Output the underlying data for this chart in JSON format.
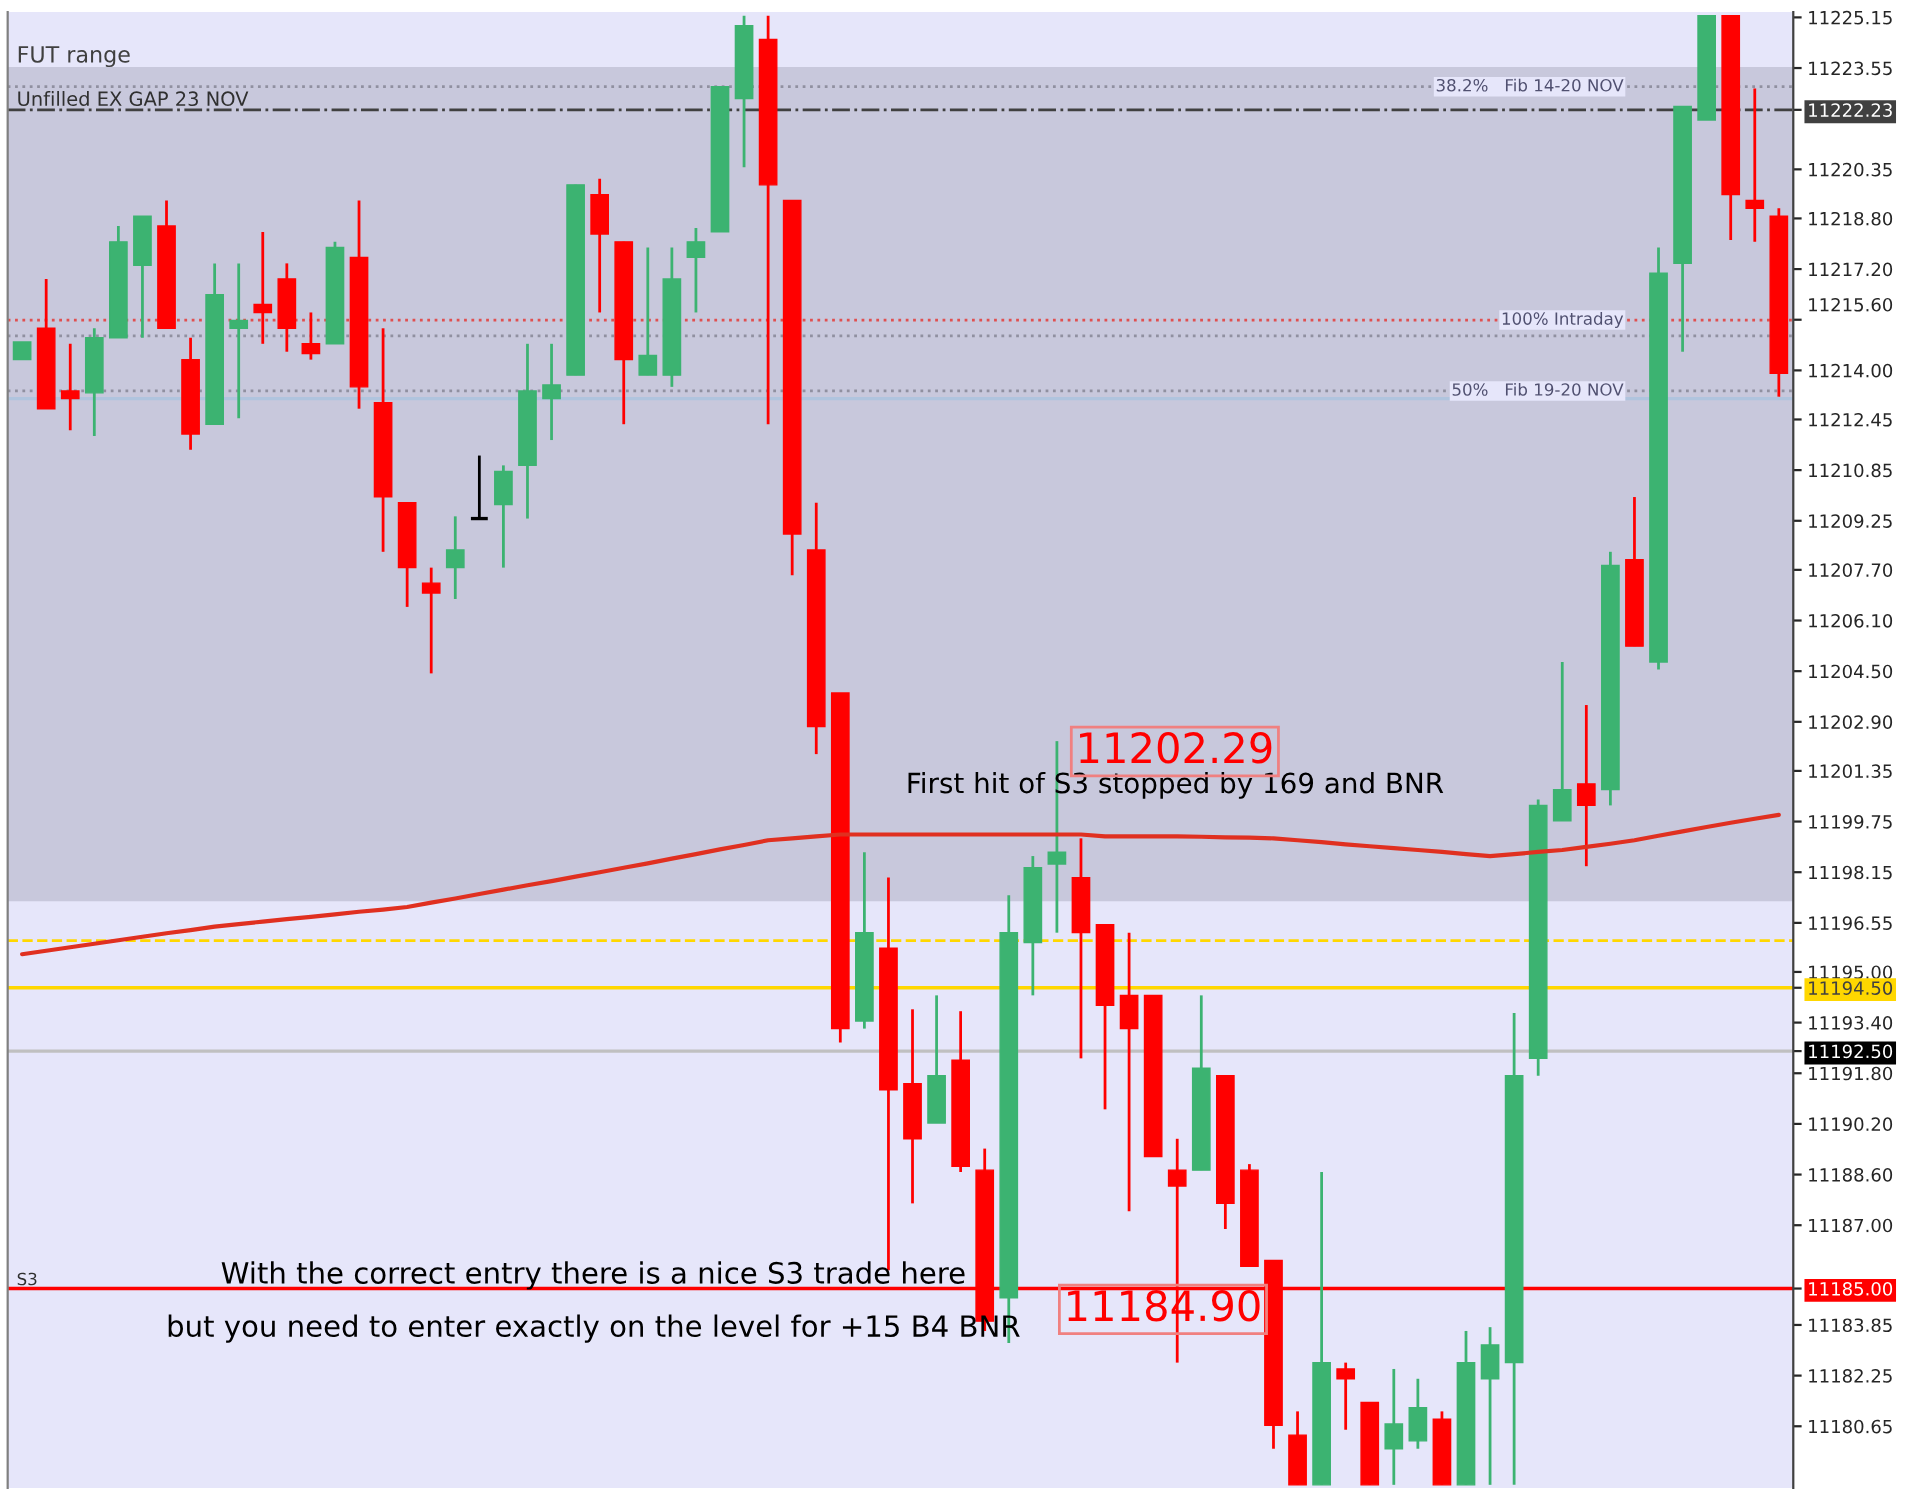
{
  "chart_data": {
    "type": "candlestick",
    "categories": [
      null,
      null,
      null,
      null,
      null,
      null,
      null,
      null,
      null,
      null,
      null,
      null,
      null,
      null,
      null,
      null,
      null,
      null,
      null,
      null,
      null,
      null,
      null,
      null,
      null,
      null,
      null,
      null,
      null,
      null,
      null,
      null,
      null,
      null,
      null,
      null,
      null,
      null,
      null,
      null,
      null,
      null,
      null,
      null,
      null,
      null,
      null,
      null,
      null,
      null,
      null,
      null,
      null,
      null,
      null,
      null,
      null,
      null,
      null,
      null,
      null,
      null,
      null,
      null,
      null,
      null,
      null,
      null,
      null,
      null,
      null,
      null,
      null,
      null
    ],
    "ohlc": [
      [
        11214.34,
        11214.9,
        11214.34,
        11214.9
      ],
      [
        11215.33,
        11216.89,
        11212.79,
        11212.79
      ],
      [
        11213.35,
        11214.84,
        11212.11,
        11213.11
      ],
      [
        11213.29,
        11215.33,
        11211.93,
        11215.03
      ],
      [
        11215.03,
        11218.56,
        11215.03,
        11218.06
      ],
      [
        11217.32,
        11218.87,
        11215.03,
        11218.87
      ],
      [
        11218.56,
        11219.37,
        11215.33,
        11215.33
      ],
      [
        11214.34,
        11215.03,
        11211.49,
        11211.99
      ],
      [
        11212.3,
        11217.38,
        11212.3,
        11216.39
      ],
      [
        11215.33,
        11217.38,
        11212.49,
        11215.58
      ],
      [
        11216.08,
        11218.37,
        11214.84,
        11215.83
      ],
      [
        11216.89,
        11217.38,
        11214.59,
        11215.33
      ],
      [
        11214.84,
        11215.83,
        11214.34,
        11214.53
      ],
      [
        11214.84,
        11218.06,
        11214.84,
        11217.88
      ],
      [
        11217.57,
        11219.37,
        11212.79,
        11213.48
      ],
      [
        11212.98,
        11215.33,
        11208.27,
        11210.01
      ],
      [
        11209.82,
        11209.82,
        11206.53,
        11207.77
      ],
      [
        11207.28,
        11207.77,
        11204.43,
        11206.97
      ],
      [
        11207.77,
        11209.39,
        11206.78,
        11208.33
      ],
      [
        11209.32,
        11211.31,
        11209.32,
        11209.32
      ],
      [
        11209.76,
        11211.0,
        11207.77,
        11210.81
      ],
      [
        11211.0,
        11214.84,
        11209.32,
        11213.35
      ],
      [
        11213.11,
        11214.84,
        11211.8,
        11213.54
      ],
      [
        11213.85,
        11219.86,
        11213.85,
        11219.86
      ],
      [
        11219.55,
        11220.05,
        11215.83,
        11218.31
      ],
      [
        11218.06,
        11218.06,
        11212.3,
        11214.34
      ],
      [
        11213.85,
        11217.88,
        11213.85,
        11214.47
      ],
      [
        11213.85,
        11217.88,
        11213.48,
        11216.89
      ],
      [
        11217.57,
        11218.5,
        11215.83,
        11218.06
      ],
      [
        11218.38,
        11222.96,
        11218.38,
        11222.96
      ],
      [
        11222.59,
        11225.2,
        11220.42,
        11224.89
      ],
      [
        11224.45,
        11225.2,
        11212.3,
        11219.86
      ],
      [
        11219.37,
        11219.37,
        11207.53,
        11208.83
      ],
      [
        11208.33,
        11209.82,
        11201.88,
        11202.75
      ],
      [
        11203.81,
        11203.81,
        11192.77,
        11193.21
      ],
      [
        11193.45,
        11198.78,
        11193.21,
        11196.24
      ],
      [
        11195.75,
        11197.98,
        11185.58,
        11191.28
      ],
      [
        11191.47,
        11193.82,
        11187.69,
        11189.73
      ],
      [
        11190.23,
        11194.26,
        11190.23,
        11191.72
      ],
      [
        11192.21,
        11193.76,
        11188.68,
        11188.86
      ],
      [
        11188.74,
        11189.42,
        11183.66,
        11183.97
      ],
      [
        11184.71,
        11197.42,
        11183.28,
        11196.24
      ],
      [
        11195.93,
        11198.66,
        11194.26,
        11198.29
      ],
      [
        11198.41,
        11202.29,
        11196.24,
        11198.78
      ],
      [
        11197.98,
        11199.22,
        11192.27,
        11196.24
      ],
      [
        11196.49,
        11196.49,
        11190.66,
        11193.95
      ],
      [
        11194.26,
        11196.24,
        11187.44,
        11193.21
      ],
      [
        11194.26,
        11194.26,
        11189.17,
        11189.17
      ],
      [
        11188.74,
        11189.73,
        11182.66,
        11188.24
      ],
      [
        11188.74,
        11194.26,
        11188.74,
        11191.96
      ],
      [
        11191.72,
        11191.72,
        11186.88,
        11187.69
      ],
      [
        11188.74,
        11188.93,
        11185.7,
        11185.7
      ],
      [
        11185.89,
        11185.89,
        11179.94,
        11180.68
      ],
      [
        11180.37,
        11181.12,
        11178.8,
        11178.8
      ],
      [
        11178.8,
        11188.68,
        11178.8,
        11182.66
      ],
      [
        11182.46,
        11182.66,
        11180.54,
        11182.15
      ],
      [
        11181.4,
        11181.4,
        11178.8,
        11178.8
      ],
      [
        11179.94,
        11182.46,
        11178.8,
        11180.72
      ],
      [
        11180.19,
        11182.15,
        11179.94,
        11181.24
      ],
      [
        11180.87,
        11181.12,
        11178.8,
        11178.8
      ],
      [
        11178.8,
        11183.66,
        11178.8,
        11182.66
      ],
      [
        11182.15,
        11183.78,
        11178.8,
        11183.22
      ],
      [
        11182.66,
        11193.7,
        11178.8,
        11191.72
      ],
      [
        11192.27,
        11200.45,
        11191.72,
        11200.26
      ],
      [
        11199.77,
        11204.79,
        11199.77,
        11200.76
      ],
      [
        11200.94,
        11203.43,
        11198.34,
        11200.26
      ],
      [
        11200.76,
        11208.27,
        11200.26,
        11207.84
      ],
      [
        11208.02,
        11210.0,
        11205.29,
        11205.29
      ],
      [
        11204.79,
        11217.88,
        11204.55,
        11217.07
      ],
      [
        11217.38,
        11222.34,
        11214.59,
        11222.34
      ],
      [
        11221.91,
        11225.2,
        11221.91,
        11225.2
      ],
      [
        11225.2,
        11225.2,
        11218.12,
        11219.55
      ],
      [
        11219.37,
        11222.9,
        11218.06,
        11219.12
      ],
      [
        11218.87,
        11219.12,
        11213.17,
        11213.91
      ]
    ],
    "colors": [
      "#3cb371",
      "#ff0000",
      "#ff0000",
      "#3cb371",
      "#3cb371",
      "#3cb371",
      "#ff0000",
      "#ff0000",
      "#3cb371",
      "#3cb371",
      "#ff0000",
      "#ff0000",
      "#ff0000",
      "#3cb371",
      "#ff0000",
      "#ff0000",
      "#ff0000",
      "#ff0000",
      "#3cb371",
      "#000000",
      "#3cb371",
      "#3cb371",
      "#3cb371",
      "#3cb371",
      "#ff0000",
      "#ff0000",
      "#3cb371",
      "#3cb371",
      "#3cb371",
      "#3cb371",
      "#3cb371",
      "#ff0000",
      "#ff0000",
      "#ff0000",
      "#ff0000",
      "#3cb371",
      "#ff0000",
      "#ff0000",
      "#3cb371",
      "#ff0000",
      "#ff0000",
      "#3cb371",
      "#3cb371",
      "#3cb371",
      "#ff0000",
      "#ff0000",
      "#ff0000",
      "#ff0000",
      "#ff0000",
      "#3cb371",
      "#ff0000",
      "#ff0000",
      "#ff0000",
      "#ff0000",
      "#3cb371",
      "#ff0000",
      "#ff0000",
      "#3cb371",
      "#3cb371",
      "#ff0000",
      "#3cb371",
      "#3cb371",
      "#3cb371",
      "#3cb371",
      "#3cb371",
      "#ff0000",
      "#3cb371",
      "#ff0000",
      "#3cb371",
      "#3cb371",
      "#3cb371",
      "#ff0000",
      "#ff0000",
      "#ff0000"
    ],
    "series": [
      {
        "type": "line",
        "color": "#e03020",
        "values": [
          11195.56,
          11195.67,
          11195.78,
          11195.89,
          11196.0,
          11196.11,
          11196.22,
          11196.32,
          11196.43,
          11196.51,
          11196.59,
          11196.67,
          11196.74,
          11196.82,
          11196.9,
          11196.97,
          11197.05,
          11197.19,
          11197.32,
          11197.46,
          11197.6,
          11197.74,
          11197.87,
          11198.01,
          11198.15,
          11198.29,
          11198.43,
          11198.58,
          11198.72,
          11198.87,
          11199.01,
          11199.16,
          11199.22,
          11199.28,
          11199.34,
          11199.34,
          11199.34,
          11199.34,
          11199.34,
          11199.34,
          11199.34,
          11199.34,
          11199.34,
          11199.34,
          11199.34,
          11199.28,
          11199.28,
          11199.28,
          11199.28,
          11199.27,
          11199.25,
          11199.24,
          11199.22,
          11199.16,
          11199.1,
          11199.03,
          11198.97,
          11198.91,
          11198.85,
          11198.79,
          11198.72,
          11198.66,
          11198.72,
          11198.79,
          11198.85,
          11198.95,
          11199.05,
          11199.16,
          11199.3,
          11199.44,
          11199.58,
          11199.71,
          11199.84,
          11199.96
        ]
      }
    ],
    "ylim": [
      11178.7,
      11225.32
    ],
    "yticks": [
      11225.15,
      11223.55,
      {
        "value": 11220.35,
        "label": "11220.35"
      },
      {
        "value": 11218.8,
        "label": "11218.80"
      },
      {
        "value": 11217.2,
        "label": "11217.20"
      },
      {
        "value": 11215.6,
        "label": "11215.60"
      },
      {
        "value": 11214.0,
        "label": "11214.00"
      },
      11212.45,
      11210.85,
      11209.25,
      {
        "value": 11207.7,
        "label": "11207.70"
      },
      {
        "value": 11206.1,
        "label": "11206.10"
      },
      {
        "value": 11204.5,
        "label": "11204.50"
      },
      {
        "value": 11202.9,
        "label": "11202.90"
      },
      11201.35,
      11199.75,
      11198.15,
      11196.55,
      {
        "value": 11195.0,
        "label": "11195.00"
      },
      {
        "value": 11193.4,
        "label": "11193.40"
      },
      {
        "value": 11191.8,
        "label": "11191.80"
      },
      {
        "value": 11190.2,
        "label": "11190.20"
      },
      {
        "value": 11188.6,
        "label": "11188.60"
      },
      {
        "value": 11187.0,
        "label": "11187.00"
      },
      11183.85,
      11182.25,
      11180.65,
      {
        "value": 11222.23,
        "label": "11222.23"
      },
      {
        "value": 11194.5,
        "label": "11194.50"
      },
      {
        "value": 11192.5,
        "label": "11192.50"
      },
      {
        "value": 11185.0,
        "label": "11185.00"
      }
    ],
    "ref_lines": [
      {
        "axis": "y",
        "value": 11222.96,
        "label": "38.2%   Fib 14-20 NOV",
        "color": "#9090a0",
        "line_style": "dotted"
      },
      {
        "axis": "y",
        "value": 11222.23,
        "label": "Unfilled EX GAP 23 NOV",
        "color": "#404040",
        "line_style": "dashdot"
      },
      {
        "axis": "y",
        "value": 11215.59,
        "label": "100% Intraday",
        "color": "#e05050",
        "line_style": "dotted"
      },
      {
        "axis": "y",
        "value": 11215.09,
        "color": "#9090a0",
        "line_style": "dotted"
      },
      {
        "axis": "y",
        "value": 11213.35,
        "label": "50%   Fib 19-20 NOV",
        "color": "#9090a0",
        "line_style": "dotted"
      },
      {
        "axis": "y",
        "value": 11213.11,
        "color": "#b0c4de",
        "line_style": "solid"
      },
      {
        "axis": "y",
        "value": 11195.99,
        "color": "#ffd700",
        "line_style": "dashed"
      },
      {
        "axis": "y",
        "value": 11194.5,
        "color": "#ffd700",
        "line_style": "solid"
      },
      {
        "axis": "y",
        "value": 11192.5,
        "color": "#c0c0c0",
        "line_style": "solid"
      },
      {
        "axis": "y",
        "value": 11185.0,
        "label": "S3",
        "color": "#ff0000",
        "line_style": "solid"
      }
    ],
    "bands": [
      {
        "axis": "y",
        "from": 11197.23,
        "to": 11223.58,
        "label": "FUT range",
        "color": "#c8c8dc"
      }
    ],
    "annotations": [
      "First hit of S3 stopped by 169 and BNR",
      "11202.29",
      "With the correct entry there is a nice S3 trade here",
      "but you need to enter exactly on the level for +15 B4 BNR",
      "11184.90"
    ],
    "grid": false,
    "legend": false
  }
}
